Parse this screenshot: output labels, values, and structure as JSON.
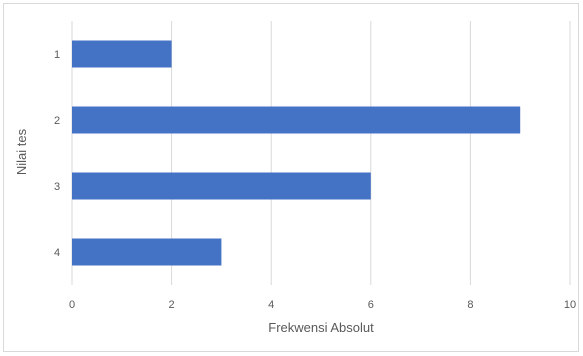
{
  "chart_data": {
    "type": "bar",
    "orientation": "horizontal",
    "title": "",
    "xlabel": "Frekwensi Absolut",
    "ylabel": "Nilai tes",
    "categories": [
      "1",
      "2",
      "3",
      "4"
    ],
    "values": [
      2,
      9,
      6,
      3
    ],
    "xlim": [
      0,
      10
    ],
    "x_ticks": [
      "0",
      "2",
      "4",
      "6",
      "8",
      "10"
    ],
    "grid": "vertical",
    "legend": "none",
    "bar_color": "#4472c4",
    "grid_color": "#d9d9d9"
  }
}
